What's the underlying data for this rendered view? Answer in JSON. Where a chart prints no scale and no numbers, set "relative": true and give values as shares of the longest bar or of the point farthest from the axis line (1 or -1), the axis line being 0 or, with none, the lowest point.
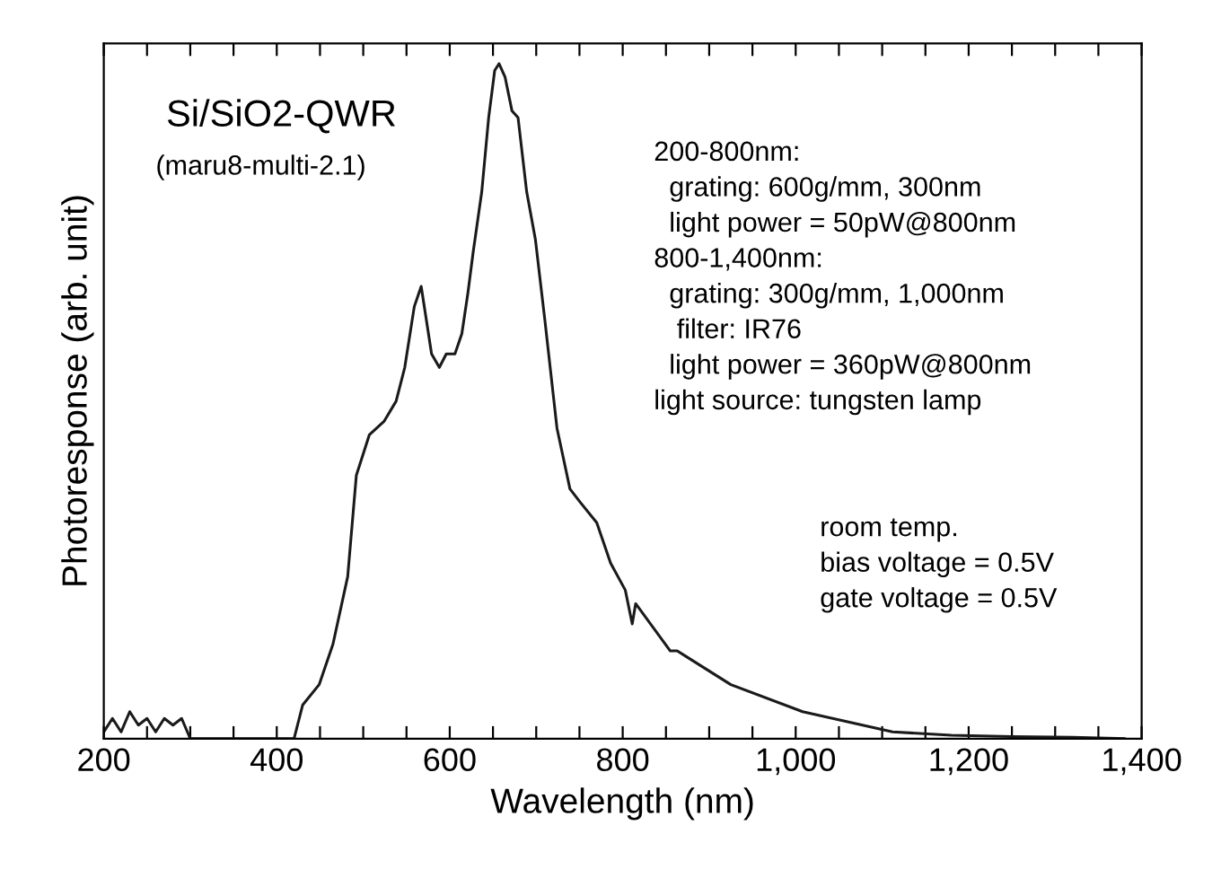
{
  "chart_data": {
    "type": "line",
    "relative": true,
    "xlabel": "Wavelength (nm)",
    "ylabel": "Photoresponse (arb. unit)",
    "xlim": [
      200,
      1400
    ],
    "xticks": [
      200,
      {
        "value": 250,
        "label": null
      },
      {
        "value": 300,
        "label": null
      },
      {
        "value": 350,
        "label": null
      },
      400,
      {
        "value": 450,
        "label": null
      },
      {
        "value": 500,
        "label": null
      },
      {
        "value": 550,
        "label": null
      },
      600,
      {
        "value": 650,
        "label": null
      },
      {
        "value": 700,
        "label": null
      },
      {
        "value": 750,
        "label": null
      },
      800,
      {
        "value": 850,
        "label": null
      },
      {
        "value": 900,
        "label": null
      },
      {
        "value": 950,
        "label": null
      },
      {
        "value": 1000,
        "label": "1,000"
      },
      {
        "value": 1050,
        "label": null
      },
      {
        "value": 1100,
        "label": null
      },
      {
        "value": 1150,
        "label": null
      },
      {
        "value": 1200,
        "label": "1,200"
      },
      {
        "value": 1250,
        "label": null
      },
      {
        "value": 1300,
        "label": null
      },
      {
        "value": 1350,
        "label": null
      },
      {
        "value": 1400,
        "label": "1,400"
      }
    ],
    "tick_labels": "x",
    "grid": false,
    "marker": "none",
    "line_style": "solid",
    "annotations": [
      "Si/SiO2-QWR",
      "(maru8-multi-2.1)",
      "200-800nm:\n  grating: 600g/mm, 300nm\n  light power = 50pW@800nm\n800-1,400nm:\n  grating: 300g/mm, 1,000nm\n   filter: IR76\n  light power = 360pW@800nm\nlight source: tungsten lamp",
      "room temp.\nbias voltage = 0.5V\ngate voltage = 0.5V"
    ],
    "series": [
      {
        "color": "#1a1a1a",
        "x": [
          200,
          210,
          220,
          230,
          240,
          250,
          260,
          270,
          280,
          290,
          300,
          320,
          340,
          360,
          380,
          400,
          420,
          430,
          449,
          465,
          482,
          492,
          507,
          524,
          538,
          548,
          559,
          567,
          579,
          588,
          596,
          606,
          614,
          621,
          627,
          637,
          645,
          652,
          657,
          664,
          672,
          679,
          689,
          699,
          710,
          724,
          739,
          751,
          770,
          786,
          803,
          811,
          815,
          855,
          863,
          925,
          1008,
          1112,
          1180,
          1250,
          1320,
          1380
        ],
        "values": [
          0.01,
          0.03,
          0.01,
          0.04,
          0.02,
          0.03,
          0.01,
          0.03,
          0.02,
          0.03,
          0.0,
          0.0,
          0.0,
          0.0,
          0.0,
          0.0,
          0.0,
          0.05,
          0.08,
          0.14,
          0.24,
          0.39,
          0.45,
          0.47,
          0.5,
          0.55,
          0.64,
          0.67,
          0.57,
          0.55,
          0.57,
          0.57,
          0.6,
          0.66,
          0.72,
          0.81,
          0.92,
          0.99,
          1.0,
          0.98,
          0.93,
          0.92,
          0.81,
          0.74,
          0.62,
          0.46,
          0.37,
          0.35,
          0.32,
          0.26,
          0.22,
          0.17,
          0.2,
          0.13,
          0.13,
          0.08,
          0.04,
          0.01,
          0.005,
          0.003,
          0.002,
          0.0
        ]
      }
    ]
  }
}
